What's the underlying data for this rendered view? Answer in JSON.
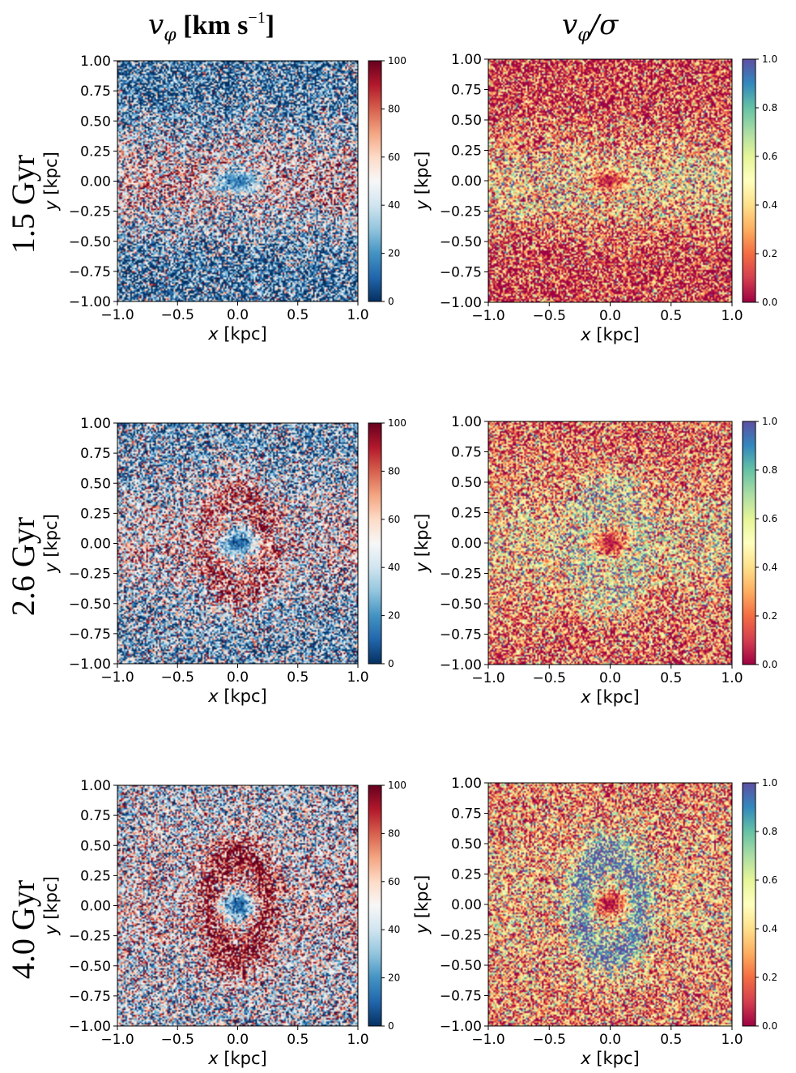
{
  "column_titles": {
    "left_main": "v",
    "left_sub": "φ",
    "left_unit_open": " [km s",
    "left_unit_exp": "−1",
    "left_unit_close": "]",
    "right_main": "v",
    "right_sub": "φ",
    "right_rest": "/σ"
  },
  "row_labels": [
    "1.5 Gyr",
    "2.6 Gyr",
    "4.0 Gyr"
  ],
  "axis_labels": {
    "x_italic": "x",
    "x_unit": " [kpc]",
    "y_italic": "y",
    "y_unit": " [kpc]"
  },
  "chart_data": [
    {
      "type": "heatmap",
      "panel": "vphi-1.5",
      "time": "1.5 Gyr",
      "quantity": "v_phi [km s^-1]",
      "colormap": "RdBu_r",
      "xlim": [
        -1.0,
        1.0
      ],
      "ylim": [
        -1.0,
        1.0
      ],
      "clim": [
        0,
        100
      ],
      "x_ticks": [
        "−1.0",
        "−0.5",
        "0.0",
        "0.5",
        "1.0"
      ],
      "y_ticks": [
        "1.00",
        "0.75",
        "0.50",
        "0.25",
        "0.00",
        "−0.25",
        "−0.50",
        "−0.75",
        "−1.00"
      ],
      "colorbar_ticks": [
        "100",
        "80",
        "60",
        "40",
        "20",
        "0"
      ],
      "structure": {
        "center_value": 12,
        "center_rx": 0.2,
        "center_ry": 0.11,
        "band_value": 60,
        "band_halfwidth_y": 0.45,
        "outer_value": 15,
        "ring_peak": 0
      }
    },
    {
      "type": "heatmap",
      "panel": "ratio-1.5",
      "time": "1.5 Gyr",
      "quantity": "v_phi/sigma",
      "colormap": "Spectral",
      "xlim": [
        -1.0,
        1.0
      ],
      "ylim": [
        -1.0,
        1.0
      ],
      "clim": [
        0.0,
        1.0
      ],
      "x_ticks": [
        "−1.0",
        "−0.5",
        "0.0",
        "0.5",
        "1.0"
      ],
      "y_ticks": [
        "1.00",
        "0.75",
        "0.50",
        "0.25",
        "0.00",
        "−0.25",
        "−0.50",
        "−0.75",
        "−1.00"
      ],
      "colorbar_ticks": [
        "1.0",
        "0.8",
        "0.6",
        "0.4",
        "0.2",
        "0.0"
      ],
      "structure": {
        "center_value": 0.05,
        "center_rx": 0.16,
        "center_ry": 0.09,
        "band_value": 0.45,
        "band_halfwidth_y": 0.42,
        "outer_value": 0.08,
        "ring_peak": 0
      }
    },
    {
      "type": "heatmap",
      "panel": "vphi-2.6",
      "time": "2.6 Gyr",
      "quantity": "v_phi [km s^-1]",
      "colormap": "RdBu_r",
      "xlim": [
        -1.0,
        1.0
      ],
      "ylim": [
        -1.0,
        1.0
      ],
      "clim": [
        0,
        100
      ],
      "x_ticks": [
        "−1.0",
        "−0.5",
        "0.0",
        "0.5",
        "1.0"
      ],
      "y_ticks": [
        "1.00",
        "0.75",
        "0.50",
        "0.25",
        "0.00",
        "−0.25",
        "−0.50",
        "−0.75",
        "−1.00"
      ],
      "colorbar_ticks": [
        "100",
        "80",
        "60",
        "40",
        "20",
        "0"
      ],
      "structure": {
        "center_value": 10,
        "center_rx": 0.17,
        "center_ry": 0.11,
        "band_value": 55,
        "band_halfwidth_y": 0.5,
        "outer_value": 25,
        "ring_peak": 80
      }
    },
    {
      "type": "heatmap",
      "panel": "ratio-2.6",
      "time": "2.6 Gyr",
      "quantity": "v_phi/sigma",
      "colormap": "Spectral",
      "xlim": [
        -1.0,
        1.0
      ],
      "ylim": [
        -1.0,
        1.0
      ],
      "clim": [
        0.0,
        1.0
      ],
      "x_ticks": [
        "−1.0",
        "−0.5",
        "0.0",
        "0.5",
        "1.0"
      ],
      "y_ticks": [
        "1.00",
        "0.75",
        "0.50",
        "0.25",
        "0.00",
        "−0.25",
        "−0.50",
        "−0.75",
        "−1.00"
      ],
      "colorbar_ticks": [
        "1.0",
        "0.8",
        "0.6",
        "0.4",
        "0.2",
        "0.0"
      ],
      "structure": {
        "center_value": 0.03,
        "center_rx": 0.14,
        "center_ry": 0.1,
        "band_value": 0.45,
        "band_halfwidth_y": 0.5,
        "outer_value": 0.18,
        "ring_peak": 0.62
      }
    },
    {
      "type": "heatmap",
      "panel": "vphi-4.0",
      "time": "4.0 Gyr",
      "quantity": "v_phi [km s^-1]",
      "colormap": "RdBu_r",
      "xlim": [
        -1.0,
        1.0
      ],
      "ylim": [
        -1.0,
        1.0
      ],
      "clim": [
        0,
        100
      ],
      "x_ticks": [
        "−1.0",
        "−0.5",
        "0.0",
        "0.5",
        "1.0"
      ],
      "y_ticks": [
        "1.00",
        "0.75",
        "0.50",
        "0.25",
        "0.00",
        "−0.25",
        "−0.50",
        "−0.75",
        "−1.00"
      ],
      "colorbar_ticks": [
        "100",
        "80",
        "60",
        "40",
        "20",
        "0"
      ],
      "structure": {
        "center_value": 8,
        "center_rx": 0.14,
        "center_ry": 0.11,
        "band_value": 55,
        "band_halfwidth_y": 0.6,
        "outer_value": 40,
        "ring_peak": 95
      }
    },
    {
      "type": "heatmap",
      "panel": "ratio-4.0",
      "time": "4.0 Gyr",
      "quantity": "v_phi/sigma",
      "colormap": "Spectral",
      "xlim": [
        -1.0,
        1.0
      ],
      "ylim": [
        -1.0,
        1.0
      ],
      "clim": [
        0.0,
        1.0
      ],
      "x_ticks": [
        "−1.0",
        "−0.5",
        "0.0",
        "0.5",
        "1.0"
      ],
      "y_ticks": [
        "1.00",
        "0.75",
        "0.50",
        "0.25",
        "0.00",
        "−0.25",
        "−0.50",
        "−0.75",
        "−1.00"
      ],
      "colorbar_ticks": [
        "1.0",
        "0.8",
        "0.6",
        "0.4",
        "0.2",
        "0.0"
      ],
      "structure": {
        "center_value": 0.02,
        "center_rx": 0.13,
        "center_ry": 0.1,
        "band_value": 0.4,
        "band_halfwidth_y": 0.6,
        "outer_value": 0.25,
        "ring_peak": 0.9
      }
    }
  ]
}
